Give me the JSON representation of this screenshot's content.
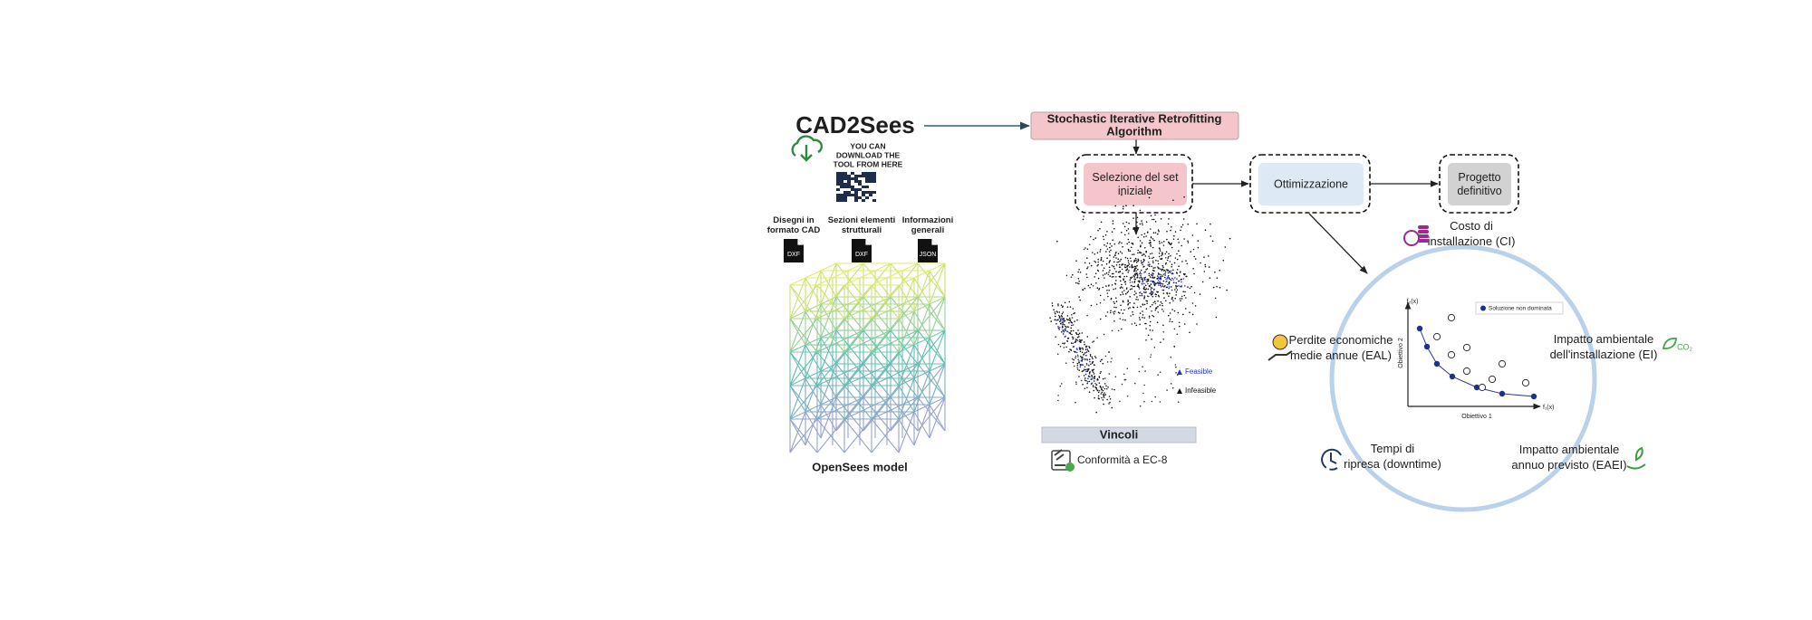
{
  "tool": {
    "title": "CAD2Sees",
    "download_text": [
      "YOU CAN",
      "DOWNLOAD THE",
      "TOOL FROM HERE"
    ],
    "inputs": [
      {
        "label": [
          "Disegni in",
          "formato CAD"
        ],
        "format": "DXF"
      },
      {
        "label": [
          "Sezioni elementi",
          "strutturali"
        ],
        "format": "DXF"
      },
      {
        "label": [
          "Informazioni",
          "generali"
        ],
        "format": "JSON"
      }
    ],
    "model_label": "OpenSees model"
  },
  "algorithm": {
    "title": [
      "Stochastic Iterative Retrofitting",
      "Algorithm"
    ]
  },
  "nodes": [
    {
      "label": [
        "Selezione del set",
        "iniziale"
      ]
    },
    {
      "label": [
        "Ottimizzazione"
      ]
    },
    {
      "label": [
        "Progetto",
        "definitivo"
      ]
    }
  ],
  "feasibility_legend": [
    "Feasible",
    "Infeasible"
  ],
  "constraints": {
    "title": "Vincoli",
    "items": [
      "Conformità a EC-8"
    ]
  },
  "objectives": [
    {
      "label": [
        "Costo di",
        "installazione (CI)"
      ]
    },
    {
      "label": [
        "Perdite economiche",
        "medie annue (EAL)"
      ]
    },
    {
      "label": [
        "Impatto ambientale",
        "dell'installazione (EI)"
      ],
      "icon_text": "CO₂"
    },
    {
      "label": [
        "Tempi di",
        "ripresa (downtime)"
      ]
    },
    {
      "label": [
        "Impatto ambientale",
        "annuo previsto (EAEI)"
      ]
    }
  ],
  "pareto": {
    "y_axis_symbol": "f₂(x)",
    "x_axis_symbol": "f₁(x)",
    "x_label": "Obiettivo 1",
    "y_label": "Obiettivo 2",
    "legend": "Soluzione non dominata"
  }
}
